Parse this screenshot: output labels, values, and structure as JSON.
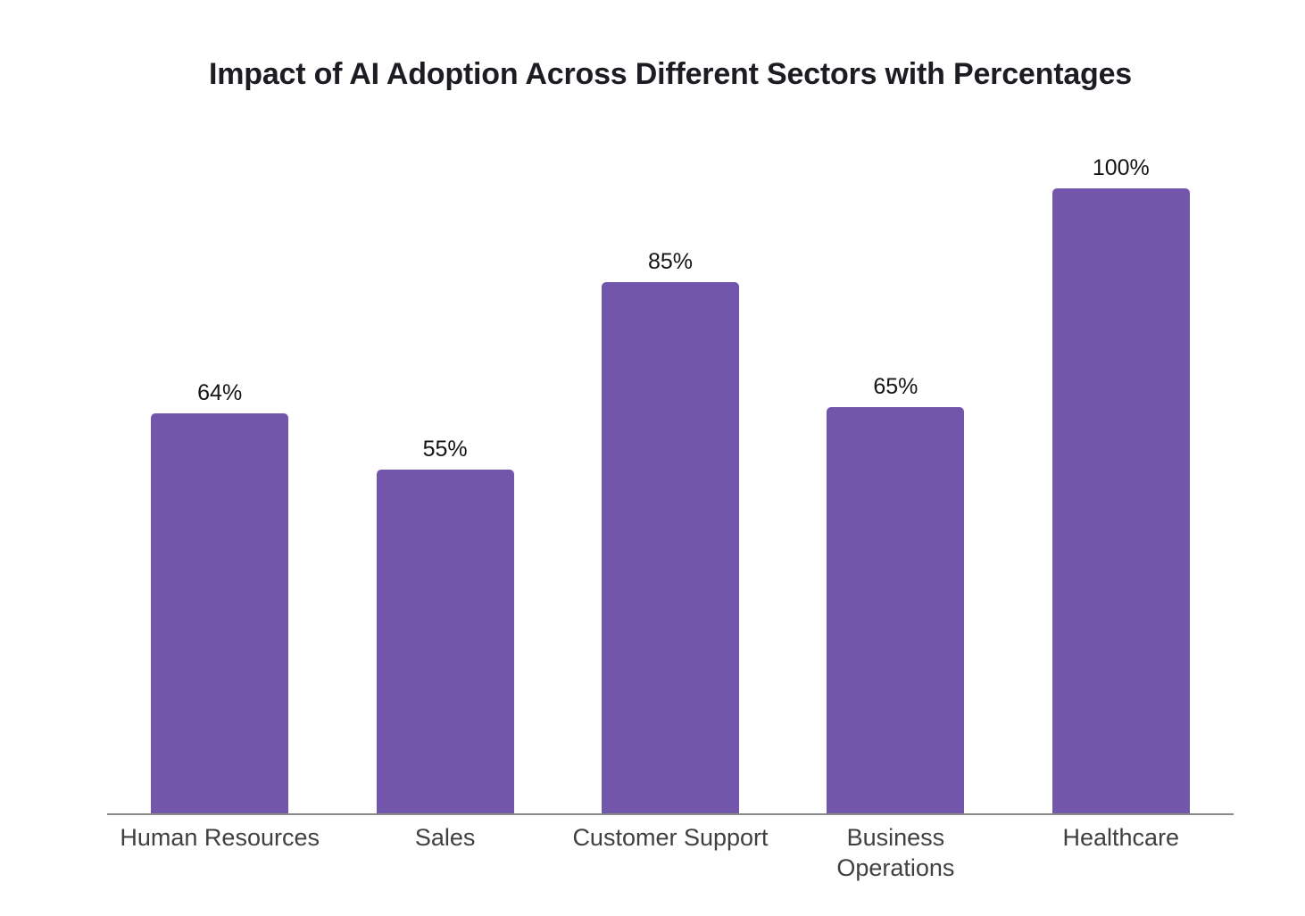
{
  "chart_data": {
    "type": "bar",
    "title": "Impact of AI Adoption Across Different Sectors with Percentages",
    "categories": [
      "Human Resources",
      "Sales",
      "Customer Support",
      "Business Operations",
      "Healthcare"
    ],
    "values": [
      64,
      55,
      85,
      65,
      100
    ],
    "value_labels": [
      "64%",
      "55%",
      "85%",
      "65%",
      "100%"
    ],
    "xlabel": "",
    "ylabel": "",
    "ylim": [
      0,
      100
    ],
    "grid": false,
    "legend": false,
    "colors": {
      "bar": "#7256AC",
      "axis_line": "#898989",
      "title": "#1c1c22",
      "value_label": "#141414",
      "category_label": "#404040",
      "background": "#ffffff"
    },
    "layout_hints": {
      "y_axis_visible": false,
      "value_labels_position": "above-bars",
      "baseline_only": true
    }
  }
}
